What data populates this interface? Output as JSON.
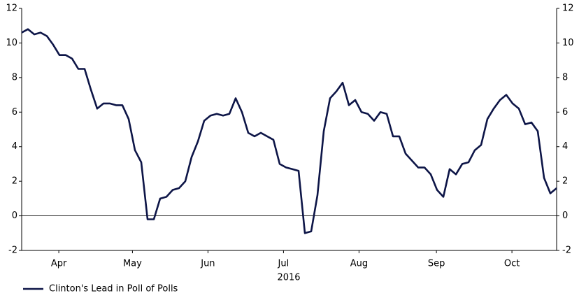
{
  "chart_data": {
    "type": "line",
    "xlabel": "2016",
    "series": [
      {
        "name": "Clinton's Lead in Poll of Polls",
        "color": "#0d1547",
        "values": [
          10.6,
          10.8,
          10.5,
          10.6,
          10.4,
          9.9,
          9.3,
          9.3,
          9.1,
          8.5,
          8.5,
          7.3,
          6.2,
          6.5,
          6.5,
          6.4,
          6.4,
          5.6,
          3.8,
          3.1,
          -0.2,
          -0.2,
          1.0,
          1.1,
          1.5,
          1.6,
          2.0,
          3.4,
          4.3,
          5.5,
          5.8,
          5.9,
          5.8,
          5.9,
          6.8,
          6.0,
          4.8,
          4.6,
          4.8,
          4.6,
          4.4,
          3.0,
          2.8,
          2.7,
          2.6,
          -1.0,
          -0.9,
          1.2,
          4.9,
          6.8,
          7.2,
          7.7,
          6.4,
          6.7,
          6.0,
          5.9,
          5.5,
          6.0,
          5.9,
          4.6,
          4.6,
          3.6,
          3.2,
          2.8,
          2.8,
          2.4,
          1.5,
          1.1,
          2.7,
          2.4,
          3.0,
          3.1,
          3.8,
          4.1,
          5.6,
          6.2,
          6.7,
          7.0,
          6.5,
          6.2,
          5.3,
          5.4,
          4.9,
          2.2,
          1.3,
          1.6
        ]
      }
    ],
    "xlim": [
      0,
      85
    ],
    "xticks": [
      {
        "value": 5.9,
        "label": "Apr"
      },
      {
        "value": 17.6,
        "label": "May"
      },
      {
        "value": 29.6,
        "label": "Jun"
      },
      {
        "value": 41.6,
        "label": "Jul"
      },
      {
        "value": 53.6,
        "label": "Aug"
      },
      {
        "value": 65.9,
        "label": "Sep"
      },
      {
        "value": 77.9,
        "label": "Oct"
      }
    ],
    "ylim": [
      -2,
      12
    ],
    "yticks": [
      -2,
      0,
      2,
      4,
      6,
      8,
      10,
      12
    ],
    "y2lim": [
      -2,
      12
    ],
    "y2ticks": [
      -2,
      0,
      2,
      4,
      6,
      8,
      10,
      12
    ],
    "reference_line": 0,
    "legend": "bottom-left"
  }
}
